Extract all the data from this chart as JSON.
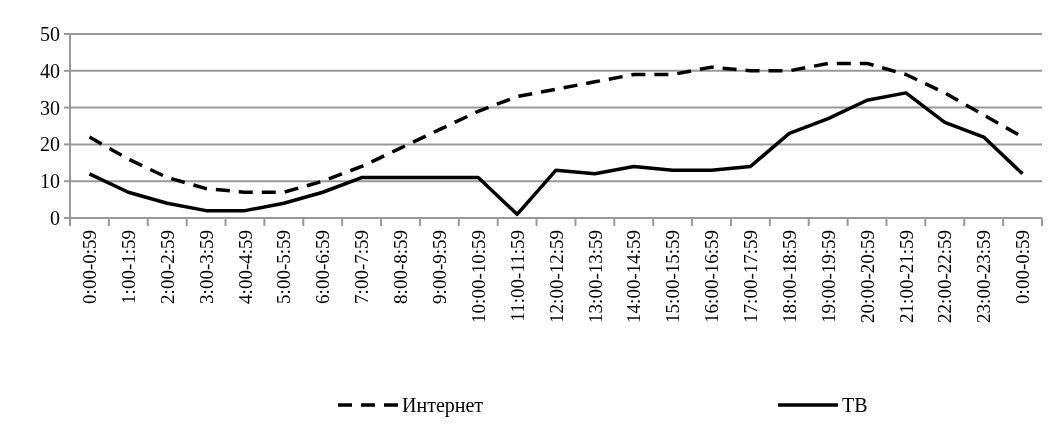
{
  "chart_data": {
    "type": "line",
    "categories": [
      "0:00-0:59",
      "1:00-1:59",
      "2:00-2:59",
      "3:00-3:59",
      "4:00-4:59",
      "5:00-5:59",
      "6:00-6:59",
      "7:00-7:59",
      "8:00-8:59",
      "9:00-9:59",
      "10:00-10:59",
      "11:00-11:59",
      "12:00-12:59",
      "13:00-13:59",
      "14:00-14:59",
      "15:00-15:59",
      "16:00-16:59",
      "17:00-17:59",
      "18:00-18:59",
      "19:00-19:59",
      "20:00-20:59",
      "21:00-21:59",
      "22:00-22:59",
      "23:00-23:59",
      "0:00-0:59"
    ],
    "series": [
      {
        "name": "Интернет",
        "color": "#000000",
        "line_style": "dashed",
        "values": [
          22,
          16,
          11,
          8,
          7,
          7,
          10,
          14,
          19,
          24,
          29,
          33,
          35,
          37,
          39,
          39,
          41,
          40,
          40,
          42,
          42,
          39,
          34,
          28,
          22
        ]
      },
      {
        "name": "ТВ",
        "color": "#000000",
        "line_style": "solid",
        "values": [
          12,
          7,
          4,
          2,
          2,
          4,
          7,
          11,
          11,
          11,
          11,
          1,
          13,
          12,
          14,
          13,
          13,
          14,
          23,
          27,
          32,
          34,
          26,
          22,
          12
        ]
      }
    ],
    "ylim": [
      0,
      50
    ],
    "yticks": [
      0,
      10,
      20,
      30,
      40,
      50
    ],
    "grid": "y",
    "legend": "bottom",
    "marker": "none"
  }
}
